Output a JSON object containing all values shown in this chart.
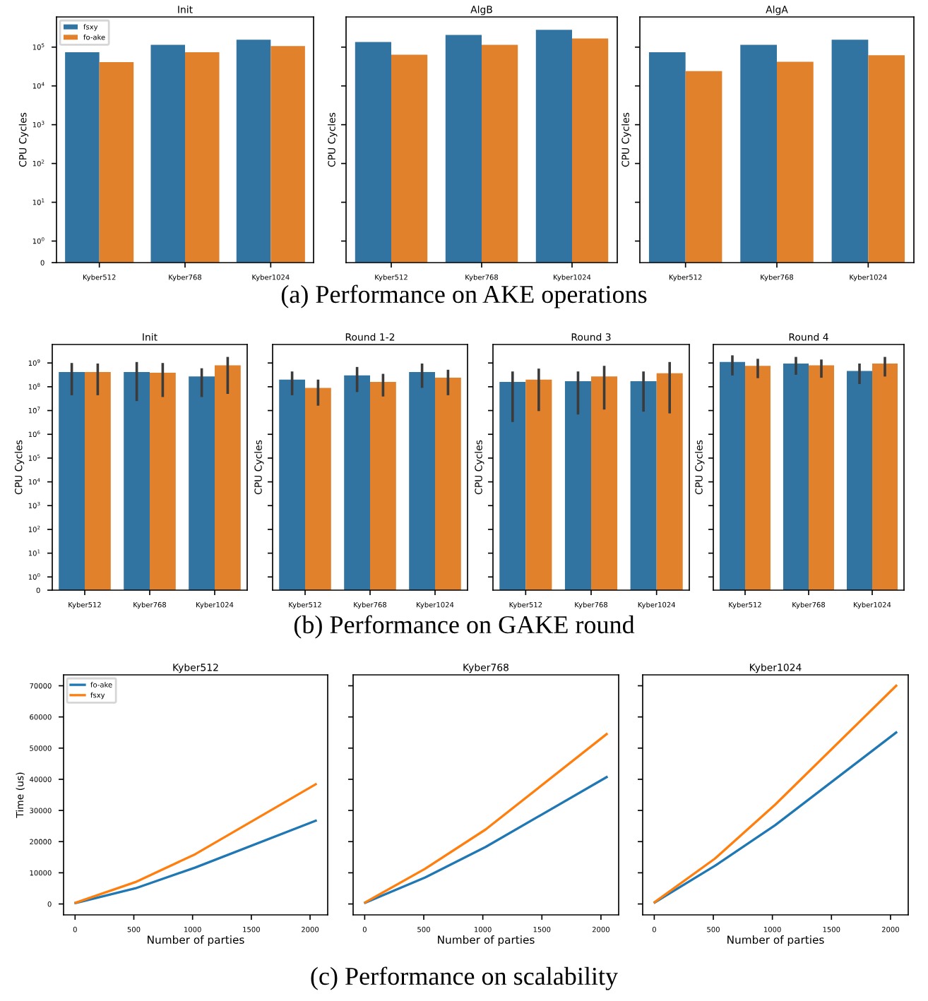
{
  "chart_data": [
    {
      "type": "bar",
      "title": "Init",
      "ylabel": "CPU Cycles",
      "categories": [
        "Kyber512",
        "Kyber768",
        "Kyber1024"
      ],
      "log": true,
      "ylim": [
        0,
        600000
      ],
      "yticks": [
        0,
        {
          "value": 1,
          "label": "10$^{0}$"
        },
        {
          "value": 10,
          "label": "10$^{1}$"
        },
        {
          "value": 100,
          "label": "10$^{2}$"
        },
        {
          "value": 1000,
          "label": "10$^{3}$"
        },
        {
          "value": 10000,
          "label": "10$^{4}$"
        },
        {
          "value": 100000,
          "label": "10$^{5}$"
        }
      ],
      "legend": "top left",
      "series": [
        {
          "name": "fsxy",
          "color": "#3274a1",
          "values": [
            74000,
            115000,
            155000
          ]
        },
        {
          "name": "fo-ake",
          "color": "#e1812c",
          "values": [
            41000,
            74000,
            107000
          ]
        }
      ]
    },
    {
      "type": "bar",
      "title": "AlgB",
      "ylabel": "CPU Cycles",
      "categories": [
        "Kyber512",
        "Kyber768",
        "Kyber1024"
      ],
      "log": true,
      "ylim": [
        0,
        600000
      ],
      "yticks": [
        {
          "value": 1,
          "label": null
        },
        {
          "value": 10,
          "label": null
        },
        {
          "value": 100,
          "label": null
        },
        {
          "value": 1000,
          "label": null
        },
        {
          "value": 10000,
          "label": null
        },
        {
          "value": 100000,
          "label": null
        }
      ],
      "tick_labels": "x",
      "series": [
        {
          "color": "#3274a1",
          "values": [
            136000,
            206000,
            280000
          ]
        },
        {
          "color": "#e1812c",
          "values": [
            64000,
            115000,
            168000
          ]
        }
      ]
    },
    {
      "type": "bar",
      "title": "AlgA",
      "ylabel": "CPU Cycles",
      "categories": [
        "Kyber512",
        "Kyber768",
        "Kyber1024"
      ],
      "log": true,
      "ylim": [
        0,
        600000
      ],
      "yticks": [
        {
          "value": 1,
          "label": null
        },
        {
          "value": 10,
          "label": null
        },
        {
          "value": 100,
          "label": null
        },
        {
          "value": 1000,
          "label": null
        },
        {
          "value": 10000,
          "label": null
        },
        {
          "value": 100000,
          "label": null
        }
      ],
      "tick_labels": "x",
      "annotations": [
        "(a) Performance on AKE operations"
      ],
      "series": [
        {
          "color": "#3274a1",
          "values": [
            74000,
            115000,
            155000
          ]
        },
        {
          "color": "#e1812c",
          "values": [
            24000,
            42000,
            62000
          ]
        }
      ]
    },
    {
      "type": "bar",
      "title": "Init",
      "ylabel": "CPU Cycles",
      "categories": [
        "Kyber512",
        "Kyber768",
        "Kyber1024"
      ],
      "log": true,
      "ylim": [
        0,
        6000000000
      ],
      "yticks": [
        0,
        {
          "value": 1,
          "label": "10$^{0}$"
        },
        {
          "value": 10,
          "label": "10$^{1}$"
        },
        {
          "value": 100,
          "label": "10$^{2}$"
        },
        {
          "value": 1000,
          "label": "10$^{3}$"
        },
        {
          "value": 10000,
          "label": "10$^{4}$"
        },
        {
          "value": 100000,
          "label": "10$^{5}$"
        },
        {
          "value": 1000000,
          "label": "10$^{6}$"
        },
        {
          "value": 10000000,
          "label": "10$^{7}$"
        },
        {
          "value": 100000000,
          "label": "10$^{8}$"
        },
        {
          "value": 1000000000,
          "label": "10$^{9}$"
        }
      ],
      "series": [
        {
          "color": "#3274a1",
          "values": [
            420000000,
            420000000,
            270000000
          ],
          "errors": [
            [
              44000000,
              1000000000
            ],
            [
              25000000,
              1100000000
            ],
            [
              37000000,
              600000000
            ]
          ]
        },
        {
          "color": "#e1812c",
          "values": [
            420000000,
            390000000,
            800000000
          ],
          "errors": [
            [
              44000000,
              950000000
            ],
            [
              37000000,
              1000000000
            ],
            [
              50000000,
              1800000000
            ]
          ]
        }
      ]
    },
    {
      "type": "bar",
      "title": "Round 1-2",
      "ylabel": "CPU Cycles",
      "categories": [
        "Kyber512",
        "Kyber768",
        "Kyber1024"
      ],
      "log": true,
      "ylim": [
        0,
        6000000000
      ],
      "yticks": [
        {
          "value": 1,
          "label": null
        },
        {
          "value": 10,
          "label": null
        },
        {
          "value": 100,
          "label": null
        },
        {
          "value": 1000,
          "label": null
        },
        {
          "value": 10000,
          "label": null
        },
        {
          "value": 100000,
          "label": null
        },
        {
          "value": 1000000,
          "label": null
        },
        {
          "value": 10000000,
          "label": null
        },
        {
          "value": 100000000,
          "label": null
        },
        {
          "value": 1000000000,
          "label": null
        }
      ],
      "tick_labels": "x",
      "series": [
        {
          "color": "#3274a1",
          "values": [
            200000000,
            300000000,
            420000000
          ],
          "errors": [
            [
              44000000,
              440000000
            ],
            [
              60000000,
              680000000
            ],
            [
              90000000,
              950000000
            ]
          ]
        },
        {
          "color": "#e1812c",
          "values": [
            90000000,
            160000000,
            240000000
          ],
          "errors": [
            [
              16000000,
              200000000
            ],
            [
              39000000,
              350000000
            ],
            [
              44000000,
              520000000
            ]
          ]
        }
      ]
    },
    {
      "type": "bar",
      "title": "Round 3",
      "ylabel": "CPU Cycles",
      "categories": [
        "Kyber512",
        "Kyber768",
        "Kyber1024"
      ],
      "log": true,
      "ylim": [
        0,
        6000000000
      ],
      "yticks": [
        {
          "value": 1,
          "label": null
        },
        {
          "value": 10,
          "label": null
        },
        {
          "value": 100,
          "label": null
        },
        {
          "value": 1000,
          "label": null
        },
        {
          "value": 10000,
          "label": null
        },
        {
          "value": 100000,
          "label": null
        },
        {
          "value": 1000000,
          "label": null
        },
        {
          "value": 10000000,
          "label": null
        },
        {
          "value": 100000000,
          "label": null
        },
        {
          "value": 1000000000,
          "label": null
        }
      ],
      "tick_labels": "x",
      "series": [
        {
          "color": "#3274a1",
          "values": [
            160000000,
            170000000,
            170000000
          ],
          "errors": [
            [
              3300000,
              440000000
            ],
            [
              6800000,
              440000000
            ],
            [
              9000000,
              440000000
            ]
          ]
        },
        {
          "color": "#e1812c",
          "values": [
            200000000,
            270000000,
            370000000
          ],
          "errors": [
            [
              9500000,
              580000000
            ],
            [
              11000000,
              760000000
            ],
            [
              7600000,
              1100000000
            ]
          ]
        }
      ]
    },
    {
      "type": "bar",
      "title": "Round 4",
      "ylabel": "CPU Cycles",
      "categories": [
        "Kyber512",
        "Kyber768",
        "Kyber1024"
      ],
      "log": true,
      "ylim": [
        0,
        6000000000
      ],
      "yticks": [
        {
          "value": 1,
          "label": null
        },
        {
          "value": 10,
          "label": null
        },
        {
          "value": 100,
          "label": null
        },
        {
          "value": 1000,
          "label": null
        },
        {
          "value": 10000,
          "label": null
        },
        {
          "value": 100000,
          "label": null
        },
        {
          "value": 1000000,
          "label": null
        },
        {
          "value": 10000000,
          "label": null
        },
        {
          "value": 100000000,
          "label": null
        },
        {
          "value": 1000000000,
          "label": null
        }
      ],
      "tick_labels": "x",
      "annotations": [
        "(b) Performance on GAKE round"
      ],
      "series": [
        {
          "color": "#3274a1",
          "values": [
            1100000000,
            950000000,
            460000000
          ],
          "errors": [
            [
              300000000,
              2100000000
            ],
            [
              320000000,
              1800000000
            ],
            [
              130000000,
              950000000
            ]
          ]
        },
        {
          "color": "#e1812c",
          "values": [
            760000000,
            800000000,
            950000000
          ],
          "errors": [
            [
              230000000,
              1500000000
            ],
            [
              240000000,
              1400000000
            ],
            [
              270000000,
              1800000000
            ]
          ]
        }
      ]
    },
    {
      "type": "line",
      "title": "Kyber512",
      "xlabel": "Number of parties",
      "ylabel": "Time (us)",
      "x": [
        4,
        512,
        1024,
        2048
      ],
      "xlim": [
        -98,
        2150
      ],
      "xticks": [
        0,
        500,
        1000,
        1500,
        2000
      ],
      "ylim": [
        -3500,
        73500
      ],
      "yticks": [
        0,
        10000,
        20000,
        30000,
        40000,
        50000,
        60000,
        70000
      ],
      "legend": "top left",
      "series": [
        {
          "name": "fo-ake",
          "color": "#1f77b4",
          "values": [
            300,
            5000,
            11700,
            26700
          ]
        },
        {
          "name": "fsxy",
          "color": "#ff7f0e",
          "values": [
            400,
            7000,
            16000,
            38400
          ]
        }
      ]
    },
    {
      "type": "line",
      "title": "Kyber768",
      "xlabel": "Number of parties",
      "x": [
        4,
        512,
        1024,
        2048
      ],
      "xlim": [
        -98,
        2150
      ],
      "xticks": [
        0,
        500,
        1000,
        1500,
        2000
      ],
      "ylim": [
        -3500,
        73500
      ],
      "yticks": [
        {
          "value": 0,
          "label": null
        },
        {
          "value": 10000,
          "label": null
        },
        {
          "value": 20000,
          "label": null
        },
        {
          "value": 30000,
          "label": null
        },
        {
          "value": 40000,
          "label": null
        },
        {
          "value": 50000,
          "label": null
        },
        {
          "value": 60000,
          "label": null
        },
        {
          "value": 70000,
          "label": null
        }
      ],
      "tick_labels": "x",
      "series": [
        {
          "color": "#1f77b4",
          "values": [
            400,
            8500,
            18300,
            40700
          ]
        },
        {
          "color": "#ff7f0e",
          "values": [
            500,
            11300,
            23900,
            54500
          ]
        }
      ]
    },
    {
      "type": "line",
      "title": "Kyber1024",
      "xlabel": "Number of parties",
      "x": [
        4,
        512,
        1024,
        2048
      ],
      "xlim": [
        -98,
        2150
      ],
      "xticks": [
        0,
        500,
        1000,
        1500,
        2000
      ],
      "ylim": [
        -3500,
        73500
      ],
      "yticks": [
        {
          "value": 0,
          "label": null
        },
        {
          "value": 10000,
          "label": null
        },
        {
          "value": 20000,
          "label": null
        },
        {
          "value": 30000,
          "label": null
        },
        {
          "value": 40000,
          "label": null
        },
        {
          "value": 50000,
          "label": null
        },
        {
          "value": 60000,
          "label": null
        },
        {
          "value": 70000,
          "label": null
        }
      ],
      "tick_labels": "x",
      "annotations": [
        "(c) Performance on scalability"
      ],
      "series": [
        {
          "color": "#1f77b4",
          "values": [
            500,
            12200,
            25300,
            55000
          ]
        },
        {
          "color": "#ff7f0e",
          "values": [
            600,
            14500,
            31900,
            70000
          ]
        }
      ]
    }
  ]
}
